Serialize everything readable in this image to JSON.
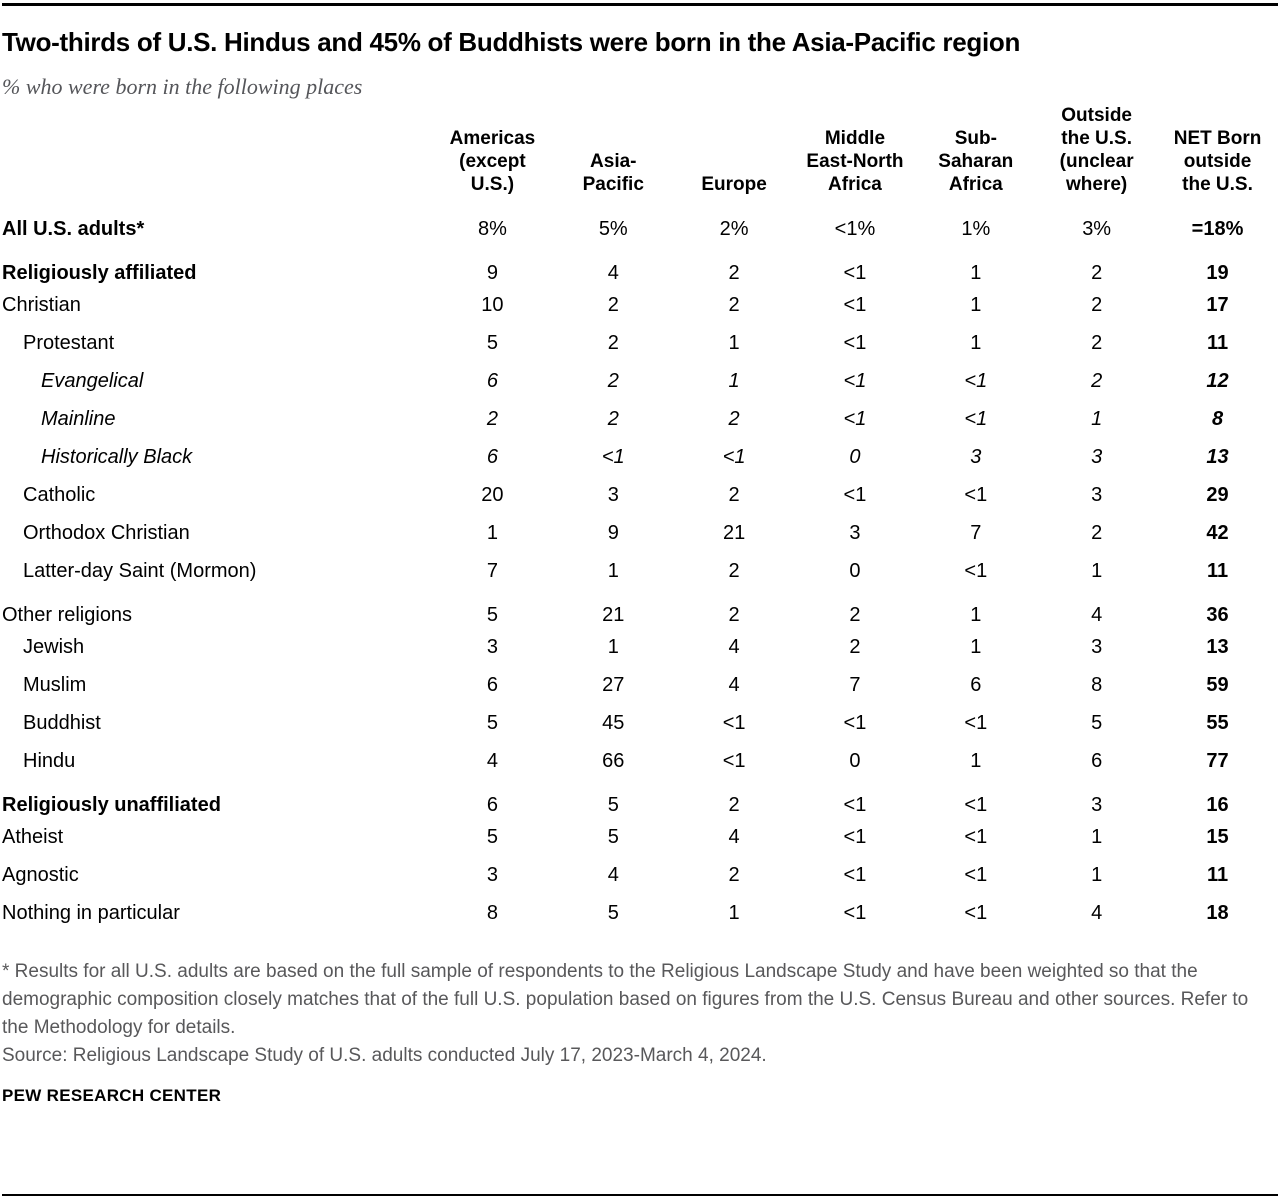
{
  "header": {
    "title": "Two-thirds of U.S. Hindus and 45% of Buddhists were born in the Asia-Pacific region",
    "subtitle": "% who were born in the following places"
  },
  "chart_data": {
    "type": "table",
    "title": "Two-thirds of U.S. Hindus and 45% of Buddhists were born in the Asia-Pacific region",
    "subtitle": "% who were born in the following places",
    "columns": [
      {
        "id": "americas-except-us",
        "label": "Americas\n(except\nU.S.)"
      },
      {
        "id": "asia-pacific",
        "label": "Asia-\nPacific"
      },
      {
        "id": "europe",
        "label": "Europe"
      },
      {
        "id": "middle-east-north-africa",
        "label": "Middle\nEast-North\nAfrica"
      },
      {
        "id": "sub-saharan-africa",
        "label": "Sub-\nSaharan\nAfrica"
      },
      {
        "id": "outside-us-unclear-where",
        "label": "Outside\nthe U.S.\n(unclear\nwhere)"
      },
      {
        "id": "net-born-outside-us",
        "label": "NET Born\noutside\nthe U.S."
      }
    ],
    "rows": [
      {
        "label": "All U.S. adults*",
        "emphasis": "bold",
        "indent": 0,
        "gap_above": false,
        "values": [
          "8%",
          "5%",
          "2%",
          "<1%",
          "1%",
          "3%",
          "=18%"
        ]
      },
      {
        "label": "Religiously affiliated",
        "emphasis": "bold",
        "indent": 0,
        "gap_above": true,
        "values": [
          "9",
          "4",
          "2",
          "<1",
          "1",
          "2",
          "19"
        ]
      },
      {
        "label": "Christian",
        "emphasis": "regular",
        "indent": 0,
        "gap_above": false,
        "values": [
          "10",
          "2",
          "2",
          "<1",
          "1",
          "2",
          "17"
        ]
      },
      {
        "label": "Protestant",
        "emphasis": "regular",
        "indent": 1,
        "gap_above": false,
        "values": [
          "5",
          "2",
          "1",
          "<1",
          "1",
          "2",
          "11"
        ]
      },
      {
        "label": "Evangelical",
        "emphasis": "italic",
        "indent": 2,
        "gap_above": false,
        "values": [
          "6",
          "2",
          "1",
          "<1",
          "<1",
          "2",
          "12"
        ]
      },
      {
        "label": "Mainline",
        "emphasis": "italic",
        "indent": 2,
        "gap_above": false,
        "values": [
          "2",
          "2",
          "2",
          "<1",
          "<1",
          "1",
          "8"
        ]
      },
      {
        "label": "Historically Black",
        "emphasis": "italic",
        "indent": 2,
        "gap_above": false,
        "values": [
          "6",
          "<1",
          "<1",
          "0",
          "3",
          "3",
          "13"
        ]
      },
      {
        "label": "Catholic",
        "emphasis": "regular",
        "indent": 1,
        "gap_above": false,
        "values": [
          "20",
          "3",
          "2",
          "<1",
          "<1",
          "3",
          "29"
        ]
      },
      {
        "label": "Orthodox Christian",
        "emphasis": "regular",
        "indent": 1,
        "gap_above": false,
        "values": [
          "1",
          "9",
          "21",
          "3",
          "7",
          "2",
          "42"
        ]
      },
      {
        "label": "Latter-day Saint (Mormon)",
        "emphasis": "regular",
        "indent": 1,
        "gap_above": false,
        "values": [
          "7",
          "1",
          "2",
          "0",
          "<1",
          "1",
          "11"
        ]
      },
      {
        "label": "Other religions",
        "emphasis": "regular",
        "indent": 0,
        "gap_above": true,
        "values": [
          "5",
          "21",
          "2",
          "2",
          "1",
          "4",
          "36"
        ]
      },
      {
        "label": "Jewish",
        "emphasis": "regular",
        "indent": 1,
        "gap_above": false,
        "values": [
          "3",
          "1",
          "4",
          "2",
          "1",
          "3",
          "13"
        ]
      },
      {
        "label": "Muslim",
        "emphasis": "regular",
        "indent": 1,
        "gap_above": false,
        "values": [
          "6",
          "27",
          "4",
          "7",
          "6",
          "8",
          "59"
        ]
      },
      {
        "label": "Buddhist",
        "emphasis": "regular",
        "indent": 1,
        "gap_above": false,
        "values": [
          "5",
          "45",
          "<1",
          "<1",
          "<1",
          "5",
          "55"
        ]
      },
      {
        "label": "Hindu",
        "emphasis": "regular",
        "indent": 1,
        "gap_above": false,
        "values": [
          "4",
          "66",
          "<1",
          "0",
          "1",
          "6",
          "77"
        ]
      },
      {
        "label": "Religiously unaffiliated",
        "emphasis": "bold",
        "indent": 0,
        "gap_above": true,
        "values": [
          "6",
          "5",
          "2",
          "<1",
          "<1",
          "3",
          "16"
        ]
      },
      {
        "label": "Atheist",
        "emphasis": "regular",
        "indent": 0,
        "gap_above": false,
        "values": [
          "5",
          "5",
          "4",
          "<1",
          "<1",
          "1",
          "15"
        ]
      },
      {
        "label": "Agnostic",
        "emphasis": "regular",
        "indent": 0,
        "gap_above": false,
        "values": [
          "3",
          "4",
          "2",
          "<1",
          "<1",
          "1",
          "11"
        ]
      },
      {
        "label": "Nothing in particular",
        "emphasis": "regular",
        "indent": 0,
        "gap_above": false,
        "values": [
          "8",
          "5",
          "1",
          "<1",
          "<1",
          "4",
          "18"
        ]
      }
    ],
    "layout_hints": {
      "net_column_bold": true,
      "headers_bottom_aligned": true,
      "grid": false
    }
  },
  "footer": {
    "note": "* Results for all U.S. adults are based on the full sample of respondents to the Religious Landscape Study and have been weighted so that the demographic composition closely matches that of the full U.S. population based on figures from the U.S. Census Bureau and other sources. Refer to the Methodology for details.",
    "source": "Source: Religious Landscape Study of U.S. adults conducted July 17, 2023-March 4, 2024.",
    "brand": "PEW RESEARCH CENTER"
  },
  "colors": {
    "text": "#000000",
    "muted": "#58585a",
    "rule": "#000000"
  }
}
